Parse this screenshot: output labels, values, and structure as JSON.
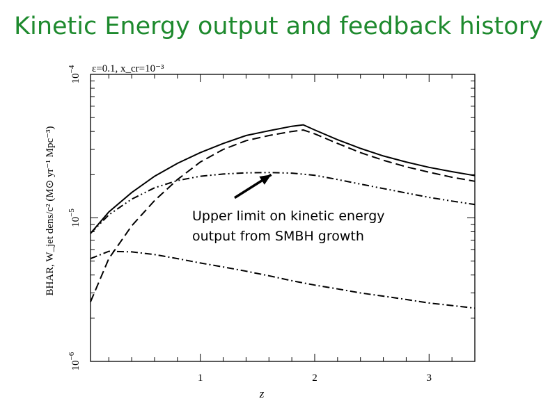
{
  "title": "Kinetic Energy output and feedback history",
  "colors": {
    "title": "#1e8a2e",
    "ink": "#000000"
  },
  "chart_data": {
    "type": "line",
    "xlabel": "z",
    "ylabel": "BHAR, W_jet dens/c² (M⊙ yr⁻¹ Mpc⁻³)",
    "params_label": "ε=0.1,  x_cr=10⁻³",
    "xlim": [
      0.04,
      3.4
    ],
    "ylim": [
      1e-06,
      0.0001
    ],
    "y_scale": "log",
    "x_ticks": [
      1,
      2,
      3
    ],
    "x_tick_labels": [
      "1",
      "2",
      "3"
    ],
    "y_ticks": [
      1e-06,
      1e-05,
      0.0001
    ],
    "y_tick_labels": [
      {
        "base": "10",
        "exp": "−6"
      },
      {
        "base": "10",
        "exp": "−5"
      },
      {
        "base": "10",
        "exp": "−4"
      }
    ],
    "annotation": {
      "lines": [
        "Upper limit on kinetic energy",
        "output from SMBH growth"
      ],
      "arrow_target": {
        "x": 1.62,
        "y": 2e-05
      },
      "arrow_tail": {
        "x": 1.3,
        "y": 1.38e-05
      }
    },
    "series": [
      {
        "style": "solid",
        "x": [
          0.04,
          0.2,
          0.4,
          0.6,
          0.8,
          1.0,
          1.2,
          1.4,
          1.6,
          1.8,
          1.9,
          2.0,
          2.2,
          2.4,
          2.6,
          2.8,
          3.0,
          3.2,
          3.4
        ],
        "y": [
          7.8e-06,
          1.1e-05,
          1.5e-05,
          1.95e-05,
          2.4e-05,
          2.85e-05,
          3.3e-05,
          3.75e-05,
          4.05e-05,
          4.35e-05,
          4.45e-05,
          4.1e-05,
          3.5e-05,
          3.05e-05,
          2.7e-05,
          2.45e-05,
          2.25e-05,
          2.1e-05,
          1.97e-05
        ]
      },
      {
        "style": "dashed",
        "x": [
          0.04,
          0.2,
          0.4,
          0.6,
          0.8,
          1.0,
          1.2,
          1.4,
          1.6,
          1.8,
          1.9,
          2.0,
          2.2,
          2.4,
          2.6,
          2.8,
          3.0,
          3.2,
          3.4
        ],
        "y": [
          2.6e-06,
          5.2e-06,
          8.8e-06,
          1.32e-05,
          1.85e-05,
          2.45e-05,
          3e-05,
          3.45e-05,
          3.75e-05,
          4e-05,
          4.1e-05,
          3.85e-05,
          3.3e-05,
          2.85e-05,
          2.52e-05,
          2.27e-05,
          2.08e-05,
          1.92e-05,
          1.8e-05
        ]
      },
      {
        "style": "dash-dot-dot",
        "x": [
          0.04,
          0.2,
          0.4,
          0.6,
          0.8,
          1.0,
          1.2,
          1.4,
          1.6,
          1.8,
          2.0,
          2.2,
          2.4,
          2.6,
          2.8,
          3.0,
          3.2,
          3.4
        ],
        "y": [
          7.8e-06,
          1.05e-05,
          1.35e-05,
          1.62e-05,
          1.82e-05,
          1.95e-05,
          2.02e-05,
          2.06e-05,
          2.07e-05,
          2.05e-05,
          1.98e-05,
          1.85e-05,
          1.72e-05,
          1.6e-05,
          1.49e-05,
          1.39e-05,
          1.31e-05,
          1.24e-05
        ]
      },
      {
        "style": "dash-dot",
        "x": [
          0.04,
          0.2,
          0.4,
          0.6,
          0.8,
          1.0,
          1.2,
          1.4,
          1.6,
          1.8,
          2.0,
          2.2,
          2.4,
          2.6,
          2.8,
          3.0,
          3.2,
          3.4
        ],
        "y": [
          5.2e-06,
          5.85e-06,
          5.8e-06,
          5.55e-06,
          5.2e-06,
          4.85e-06,
          4.55e-06,
          4.25e-06,
          3.95e-06,
          3.65e-06,
          3.4e-06,
          3.2e-06,
          3e-06,
          2.85e-06,
          2.7e-06,
          2.55e-06,
          2.45e-06,
          2.35e-06
        ]
      }
    ]
  }
}
